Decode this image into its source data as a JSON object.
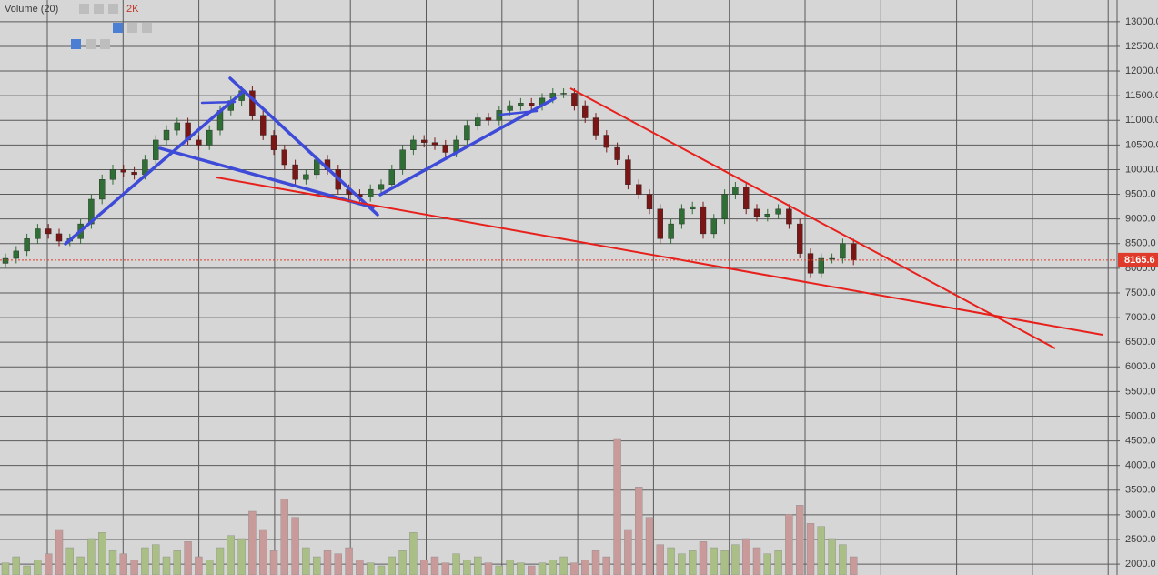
{
  "chart_data": {
    "type": "candlestick",
    "legend_title": "Volume (20)",
    "volume_label": "2K",
    "ylim": [
      1780,
      13440
    ],
    "yticks": [
      {
        "value": 2000,
        "label": "2000.0"
      },
      {
        "value": 2500,
        "label": "2500.0"
      },
      {
        "value": 3000,
        "label": "3000.0"
      },
      {
        "value": 3500,
        "label": "3500.0"
      },
      {
        "value": 4000,
        "label": "4000.0"
      },
      {
        "value": 4500,
        "label": "4500.0"
      },
      {
        "value": 5000,
        "label": "5000.0"
      },
      {
        "value": 5500,
        "label": "5500.0"
      },
      {
        "value": 6000,
        "label": "6000.0"
      },
      {
        "value": 6500,
        "label": "6500.0"
      },
      {
        "value": 7000,
        "label": "7000.0"
      },
      {
        "value": 7500,
        "label": "7500.0"
      },
      {
        "value": 8000,
        "label": "8000.0"
      },
      {
        "value": 8500,
        "label": "8500.0"
      },
      {
        "value": 9000,
        "label": "9000.0"
      },
      {
        "value": 9500,
        "label": "9500.0"
      },
      {
        "value": 10000,
        "label": "10000.0"
      },
      {
        "value": 10500,
        "label": "10500.0"
      },
      {
        "value": 11000,
        "label": "11000.0"
      },
      {
        "value": 11500,
        "label": "11500.0"
      },
      {
        "value": 12000,
        "label": "12000.0"
      },
      {
        "value": 12500,
        "label": "12500.0"
      },
      {
        "value": 13000,
        "label": "13000.0"
      }
    ],
    "grid": true,
    "up_color": "#2f6e34",
    "down_color": "#7a1616",
    "volume_up_color": "#a9bf86",
    "volume_down_color": "#c99a9a",
    "last_price": 8165.6,
    "last_price_color": "#e03a2a",
    "open": [
      8100,
      8200,
      8350,
      8600,
      8800,
      8700,
      8550,
      8600,
      8900,
      9400,
      9800,
      10000,
      9950,
      9900,
      10200,
      10600,
      10800,
      10950,
      10600,
      10500,
      10800,
      11200,
      11400,
      11600,
      11100,
      10700,
      10400,
      10100,
      9800,
      9900,
      10200,
      10000,
      9600,
      9500,
      9450,
      9600,
      9700,
      10000,
      10400,
      10600,
      10550,
      10500,
      10350,
      10600,
      10900,
      11050,
      11000,
      11200,
      11300,
      11350,
      11300,
      11450,
      11550,
      11550,
      11300,
      11050,
      10700,
      10450,
      10200,
      9700,
      9500,
      9200,
      8600,
      8900,
      9200,
      9250,
      8700,
      9000,
      9500,
      9650,
      9200,
      9050,
      9100,
      9200,
      8900,
      8300,
      7900,
      8200,
      8200,
      8500
    ],
    "high": [
      8300,
      8450,
      8700,
      8900,
      8900,
      8800,
      8700,
      9000,
      9500,
      9900,
      10100,
      10100,
      10050,
      10300,
      10700,
      10900,
      11050,
      11050,
      10700,
      10900,
      11300,
      11500,
      11700,
      11700,
      11200,
      10800,
      10500,
      10200,
      10000,
      10300,
      10300,
      10100,
      9700,
      9600,
      9700,
      9800,
      10100,
      10500,
      10700,
      10700,
      10650,
      10600,
      10700,
      11000,
      11150,
      11150,
      11300,
      11400,
      11450,
      11450,
      11550,
      11650,
      11650,
      11650,
      11400,
      11150,
      10800,
      10550,
      10300,
      9800,
      9600,
      9300,
      9000,
      9300,
      9350,
      9350,
      9100,
      9600,
      9750,
      9750,
      9300,
      9200,
      9300,
      9300,
      9000,
      8400,
      8300,
      8300,
      8600,
      8600
    ],
    "low": [
      8000,
      8100,
      8250,
      8500,
      8600,
      8450,
      8450,
      8500,
      8800,
      9300,
      9700,
      9850,
      9800,
      9800,
      10100,
      10500,
      10700,
      10500,
      10400,
      10400,
      10700,
      11100,
      11300,
      11000,
      10600,
      10300,
      10000,
      9700,
      9700,
      9800,
      9900,
      9500,
      9400,
      9350,
      9350,
      9500,
      9600,
      9900,
      10300,
      10450,
      10400,
      10250,
      10250,
      10500,
      10800,
      10900,
      10900,
      11100,
      11200,
      11200,
      11200,
      11350,
      11450,
      11200,
      10950,
      10600,
      10350,
      10100,
      9600,
      9400,
      9100,
      8500,
      8500,
      8800,
      9100,
      8600,
      8600,
      8900,
      9400,
      9100,
      8950,
      8950,
      9000,
      8800,
      8200,
      7800,
      7800,
      8100,
      8100,
      8065.6
    ],
    "close": [
      8200,
      8350,
      8600,
      8800,
      8700,
      8550,
      8600,
      8900,
      9400,
      9800,
      10000,
      9950,
      9900,
      10200,
      10600,
      10800,
      10950,
      10600,
      10500,
      10800,
      11200,
      11400,
      11600,
      11100,
      10700,
      10400,
      10100,
      9800,
      9900,
      10200,
      10000,
      9600,
      9500,
      9450,
      9600,
      9700,
      10000,
      10400,
      10600,
      10550,
      10500,
      10350,
      10600,
      10900,
      11050,
      11000,
      11200,
      11300,
      11350,
      11300,
      11450,
      11550,
      11550,
      11300,
      11050,
      10700,
      10450,
      10200,
      9700,
      9500,
      9200,
      8600,
      8900,
      9200,
      9250,
      8700,
      9000,
      9500,
      9650,
      9200,
      9050,
      9100,
      9200,
      8900,
      8300,
      7900,
      8200,
      8200,
      8500,
      8165.6
    ],
    "volume_lim": [
      0,
      6
    ],
    "volume": [
      0.4,
      0.6,
      0.3,
      0.5,
      0.7,
      1.5,
      0.9,
      0.6,
      1.2,
      1.4,
      0.8,
      0.7,
      0.5,
      0.9,
      1.0,
      0.6,
      0.8,
      1.1,
      0.6,
      0.5,
      0.9,
      1.3,
      1.2,
      2.1,
      1.5,
      0.8,
      2.5,
      1.9,
      0.9,
      0.6,
      0.8,
      0.7,
      0.9,
      0.5,
      0.4,
      0.3,
      0.6,
      0.8,
      1.4,
      0.5,
      0.6,
      0.4,
      0.7,
      0.5,
      0.6,
      0.4,
      0.3,
      0.5,
      0.4,
      0.3,
      0.4,
      0.5,
      0.6,
      0.4,
      0.5,
      0.8,
      0.6,
      4.5,
      1.5,
      2.9,
      1.9,
      1.0,
      0.9,
      0.7,
      0.8,
      1.1,
      0.9,
      0.8,
      1.0,
      1.2,
      0.9,
      0.7,
      0.8,
      2.0,
      2.3,
      1.7,
      1.6,
      1.2,
      1.0,
      0.6
    ]
  }
}
